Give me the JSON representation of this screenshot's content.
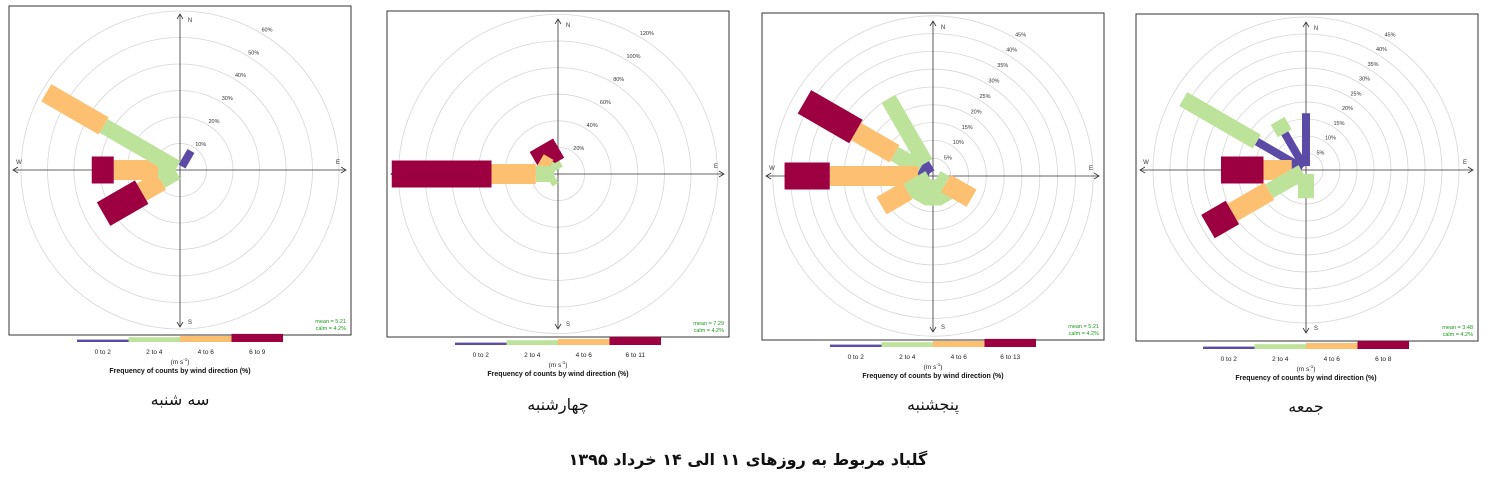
{
  "figure": {
    "caption": "گلباد مربوط به روزهای ۱۱ الی ۱۴ خرداد ۱۳۹۵"
  },
  "palette": {
    "bin_colors": [
      "#5b4aa6",
      "#bde39a",
      "#fdc070",
      "#9c0040"
    ]
  },
  "chart_data": [
    {
      "type": "windrose",
      "day_label": "سه شنبه",
      "compass": [
        "N",
        "E",
        "S",
        "W"
      ],
      "rings": [
        10,
        20,
        30,
        40,
        50,
        60
      ],
      "ring_labels": [
        "10%",
        "20%",
        "30%",
        "40%",
        "50%",
        "60%"
      ],
      "bins": [
        "0 to 2",
        "2 to 4",
        "4 to 6",
        "6 to 9"
      ],
      "units": "(m s",
      "units_exp": "-1",
      "xlabel": "Frequency of counts by wind direction (%)",
      "mean_text": "mean = 5.21",
      "calm_text": "calm = 4.2%",
      "directions": [
        {
          "dir": 30,
          "cum": [
            8.3,
            8.3,
            8.3,
            8.3
          ]
        },
        {
          "dir": 210,
          "cum": [
            0,
            0,
            0,
            0
          ]
        },
        {
          "dir": 240,
          "cum": [
            0,
            8.3,
            16.7,
            33.3
          ]
        },
        {
          "dir": 270,
          "cum": [
            0,
            8.3,
            25,
            33.3
          ]
        },
        {
          "dir": 300,
          "cum": [
            0,
            33.3,
            58.3,
            58.3
          ]
        }
      ]
    },
    {
      "type": "windrose",
      "day_label": "چهارشنبه",
      "compass": [
        "N",
        "E",
        "S",
        "W"
      ],
      "rings": [
        20,
        40,
        60,
        80,
        100,
        120
      ],
      "ring_labels": [
        "20%",
        "40%",
        "60%",
        "80%",
        "100%",
        "120%"
      ],
      "bins": [
        "0 to 2",
        "2 to 4",
        "4 to 6",
        "6 to 11"
      ],
      "units": "(m s",
      "units_exp": "-1",
      "xlabel": "Frequency of counts by wind direction (%)",
      "mean_text": "mean = 7.29",
      "calm_text": "calm = 4.2%",
      "directions": [
        {
          "dir": 330,
          "cum": [
            0,
            8.3,
            8.3,
            25
          ]
        },
        {
          "dir": 300,
          "cum": [
            0,
            8.3,
            16.7,
            16.7
          ]
        },
        {
          "dir": 270,
          "cum": [
            0,
            16.7,
            50,
            125
          ]
        },
        {
          "dir": 240,
          "cum": [
            0,
            8.3,
            8.3,
            8.3
          ]
        }
      ]
    },
    {
      "type": "windrose",
      "day_label": "پنجشنبه",
      "compass": [
        "N",
        "E",
        "S",
        "W"
      ],
      "rings": [
        5,
        10,
        15,
        20,
        25,
        30,
        35,
        40,
        45
      ],
      "ring_labels": [
        "5%",
        "10%",
        "15%",
        "20%",
        "25%",
        "30%",
        "35%",
        "40%",
        "45%"
      ],
      "bins": [
        "0 to 2",
        "2 to 4",
        "4 to 6",
        "6 to 13"
      ],
      "units": "(m s",
      "units_exp": "-1",
      "xlabel": "Frequency of counts by wind direction (%)",
      "mean_text": "mean = 5.21",
      "calm_text": "calm = 4.2%",
      "directions": [
        {
          "dir": 300,
          "cum": [
            4.2,
            12.5,
            25,
            41.7
          ]
        },
        {
          "dir": 330,
          "cum": [
            4.2,
            25,
            25,
            25
          ]
        },
        {
          "dir": 270,
          "cum": [
            4.2,
            4.2,
            29,
            41.7
          ]
        },
        {
          "dir": 240,
          "cum": [
            0,
            8.3,
            16.7,
            16.7
          ]
        },
        {
          "dir": 210,
          "cum": [
            0,
            8.3,
            8.3,
            8.3
          ]
        },
        {
          "dir": 180,
          "cum": [
            0,
            8.3,
            8.3,
            8.3
          ]
        },
        {
          "dir": 150,
          "cum": [
            0,
            8.3,
            8.3,
            8.3
          ]
        },
        {
          "dir": 120,
          "cum": [
            0,
            4.2,
            12.5,
            12.5
          ]
        }
      ]
    },
    {
      "type": "windrose",
      "day_label": "جمعه",
      "compass": [
        "N",
        "E",
        "S",
        "W"
      ],
      "rings": [
        5,
        10,
        15,
        20,
        25,
        30,
        35,
        40,
        45
      ],
      "ring_labels": [
        "5%",
        "10%",
        "15%",
        "20%",
        "25%",
        "30%",
        "35%",
        "40%",
        "45%"
      ],
      "bins": [
        "0 to 2",
        "2 to 4",
        "4 to 6",
        "6 to 8"
      ],
      "units": "(m s",
      "units_exp": "-1",
      "xlabel": "Frequency of counts by wind direction (%)",
      "mean_text": "mean = 3.48",
      "calm_text": "calm = 4.2%",
      "directions": [
        {
          "dir": 0,
          "cum": [
            16.7,
            16.7,
            16.7,
            16.7
          ]
        },
        {
          "dir": 330,
          "cum": [
            12.5,
            16.7,
            16.7,
            16.7
          ]
        },
        {
          "dir": 300,
          "cum": [
            16.7,
            41.7,
            41.7,
            41.7
          ]
        },
        {
          "dir": 270,
          "cum": [
            4.2,
            4.2,
            12.5,
            25
          ]
        },
        {
          "dir": 240,
          "cum": [
            0,
            12.5,
            25,
            33.3
          ]
        },
        {
          "dir": 180,
          "cum": [
            0,
            8.3,
            8.3,
            8.3
          ]
        }
      ]
    }
  ]
}
